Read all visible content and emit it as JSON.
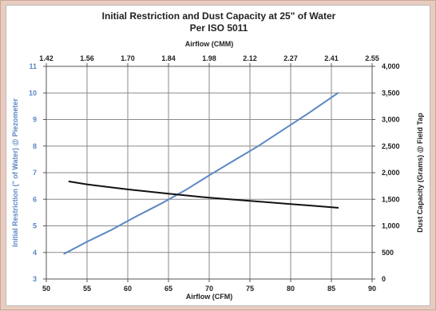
{
  "chart_data": {
    "type": "line",
    "title": "Initial Restriction and Dust Capacity at 25\" of Water",
    "subtitle": "Per ISO 5011",
    "xlabel": "Airflow (CFM)",
    "x2label": "Airflow (CMM)",
    "ylabel": "Initial Restriction (\" of Water) @ Piezometer",
    "y2label": "Dust Capacity (Grams) @ Field Tap",
    "xlim": [
      50,
      90
    ],
    "ylim": [
      3,
      11
    ],
    "y2lim": [
      0,
      4000
    ],
    "x_ticks": [
      "50",
      "55",
      "60",
      "65",
      "70",
      "75",
      "80",
      "85",
      "90"
    ],
    "x2_ticks": [
      "1.42",
      "1.56",
      "1.70",
      "1.84",
      "1.98",
      "2.12",
      "2.27",
      "2.41",
      "2.55"
    ],
    "y_ticks": [
      "3",
      "4",
      "5",
      "6",
      "7",
      "8",
      "9",
      "10",
      "11"
    ],
    "y2_ticks": [
      "0",
      "500",
      "1,000",
      "1,500",
      "2,000",
      "2,500",
      "3,000",
      "3,500",
      "4,000"
    ],
    "grid": true,
    "series": [
      {
        "axis": "left",
        "color": "#5b87c4",
        "x": [
          52.2,
          55,
          58,
          61,
          64,
          67,
          70,
          73,
          76,
          79,
          82,
          85.8
        ],
        "y": [
          3.95,
          4.4,
          4.85,
          5.35,
          5.82,
          6.33,
          6.9,
          7.45,
          8.0,
          8.6,
          9.2,
          10.0
        ]
      },
      {
        "axis": "right",
        "color": "#111111",
        "x": [
          52.8,
          55,
          60,
          65,
          70,
          75,
          80,
          85.8
        ],
        "y": [
          1835,
          1780,
          1685,
          1605,
          1530,
          1470,
          1410,
          1340
        ]
      }
    ]
  }
}
